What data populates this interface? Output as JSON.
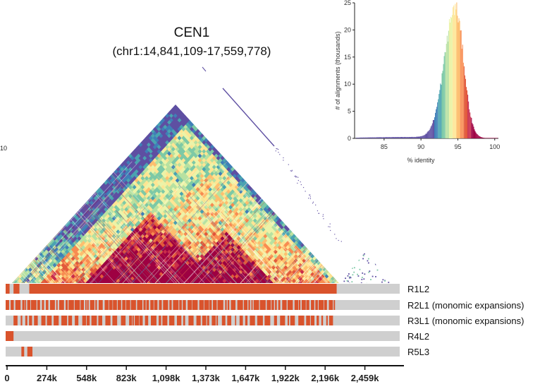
{
  "chart_data": [
    {
      "type": "heatmap",
      "title": "CEN1",
      "subtitle": "(chr1:14,841,109-17,559,778)",
      "region": {
        "chrom": "chr1",
        "start": 14841109,
        "end": 17559778
      },
      "x_ticks": [
        "0",
        "274k",
        "548k",
        "823k",
        "1,098k",
        "1,373k",
        "1,647k",
        "1,922k",
        "2,196k",
        "2,459k"
      ],
      "x_tick_values": [
        0,
        274000,
        548000,
        823000,
        1098000,
        1373000,
        1647000,
        1922000,
        2196000,
        2459000
      ],
      "left_edge_label": "10",
      "description_scale": "% identity heatmap (triangular self-identity plot)",
      "tracks": [
        {
          "name": "R1L2",
          "label": "R1L2"
        },
        {
          "name": "R2L1",
          "label": "R2L1 (monomic expansions)"
        },
        {
          "name": "R3L1",
          "label": "R3L1 (monomic expansions)"
        },
        {
          "name": "R4L2",
          "label": "R4L2"
        },
        {
          "name": "R5L3",
          "label": "R5L3"
        }
      ]
    },
    {
      "type": "area",
      "xlabel": "% identity",
      "ylabel": "# of alignments (thousands)",
      "xlim": [
        81,
        100.5
      ],
      "ylim": [
        0,
        25
      ],
      "x_ticks": [
        85,
        90,
        95,
        100
      ],
      "y_ticks": [
        0,
        5,
        10,
        15,
        20,
        25
      ],
      "peak": {
        "x": 94.6,
        "y": 23.9
      },
      "spread_sd": 1.4
    }
  ],
  "colors": {
    "track_bg": "#cfcfcf",
    "track_fill": "#d9532c",
    "axis": "#111111"
  }
}
